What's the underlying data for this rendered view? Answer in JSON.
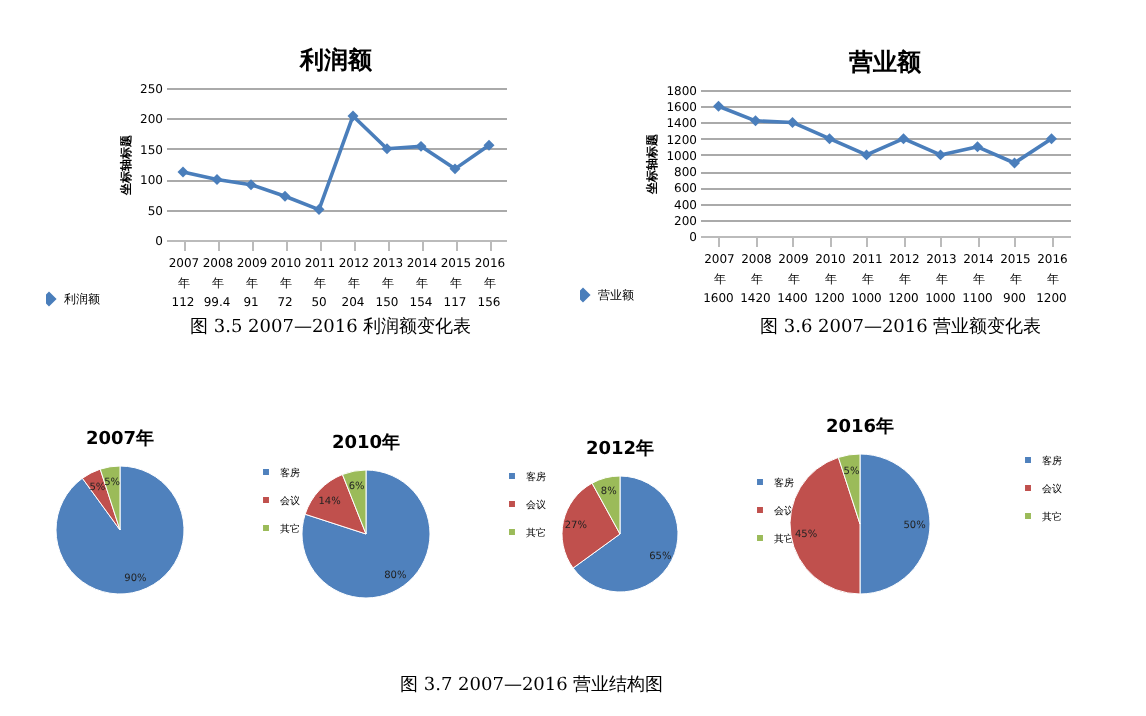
{
  "chart_data": [
    {
      "type": "line",
      "title": "利润额",
      "ylabel": "坐标轴标题",
      "categories": [
        "2007年",
        "2008年",
        "2009年",
        "2010年",
        "2011年",
        "2012年",
        "2013年",
        "2014年",
        "2015年",
        "2016年"
      ],
      "series": [
        {
          "name": "利润额",
          "color": "#4a7ebb",
          "values": [
            112,
            99.4,
            91,
            72,
            50,
            204,
            150,
            154,
            117,
            156
          ]
        }
      ],
      "ylim": [
        0,
        250
      ],
      "yticks": [
        0,
        50,
        100,
        150,
        200,
        250
      ],
      "grid": "y",
      "marker": "diamond",
      "data_labels": true,
      "legend": "bottom left",
      "annotations": [
        "图 3.5 2007—2016 利润额变化表"
      ]
    },
    {
      "type": "line",
      "title": "营业额",
      "ylabel": "坐标轴标题",
      "categories": [
        "2007年",
        "2008年",
        "2009年",
        "2010年",
        "2011年",
        "2012年",
        "2013年",
        "2014年",
        "2015年",
        "2016年"
      ],
      "series": [
        {
          "name": "营业额",
          "color": "#4a7ebb",
          "values": [
            1600,
            1420,
            1400,
            1200,
            1000,
            1200,
            1000,
            1100,
            900,
            1200
          ]
        }
      ],
      "ylim": [
        0,
        1800
      ],
      "yticks": [
        0,
        200,
        400,
        600,
        800,
        1000,
        1200,
        1400,
        1600,
        1800
      ],
      "grid": "y",
      "marker": "diamond",
      "data_labels": true,
      "legend": "bottom left",
      "annotations": [
        "图 3.6 2007—2016 营业额变化表"
      ]
    },
    {
      "type": "pie",
      "title": "2007年",
      "categories": [
        "客房",
        "会议",
        "其它"
      ],
      "values": [
        90,
        5,
        5
      ],
      "value_labels": [
        "90%",
        "5%",
        "5%"
      ],
      "colors": [
        "#4f81bd",
        "#c0504d",
        "#9bbb59"
      ],
      "legend": "right"
    },
    {
      "type": "pie",
      "title": "2010年",
      "categories": [
        "客房",
        "会议",
        "其它"
      ],
      "values": [
        80,
        14,
        6
      ],
      "value_labels": [
        "80%",
        "14%",
        "6%"
      ],
      "colors": [
        "#4f81bd",
        "#c0504d",
        "#9bbb59"
      ],
      "legend": "right"
    },
    {
      "type": "pie",
      "title": "2012年",
      "categories": [
        "客房",
        "会议",
        "其它"
      ],
      "values": [
        65,
        27,
        8
      ],
      "value_labels": [
        "65%",
        "27%",
        "8%"
      ],
      "colors": [
        "#4f81bd",
        "#c0504d",
        "#9bbb59"
      ],
      "legend": "right"
    },
    {
      "type": "pie",
      "title": "2016年",
      "categories": [
        "客房",
        "会议",
        "其它"
      ],
      "values": [
        50,
        45,
        5
      ],
      "value_labels": [
        "50%",
        "45%",
        "5%"
      ],
      "colors": [
        "#4f81bd",
        "#c0504d",
        "#9bbb59"
      ],
      "legend": "right",
      "annotations": [
        "图 3.7 2007—2016 营业结构图"
      ]
    }
  ]
}
